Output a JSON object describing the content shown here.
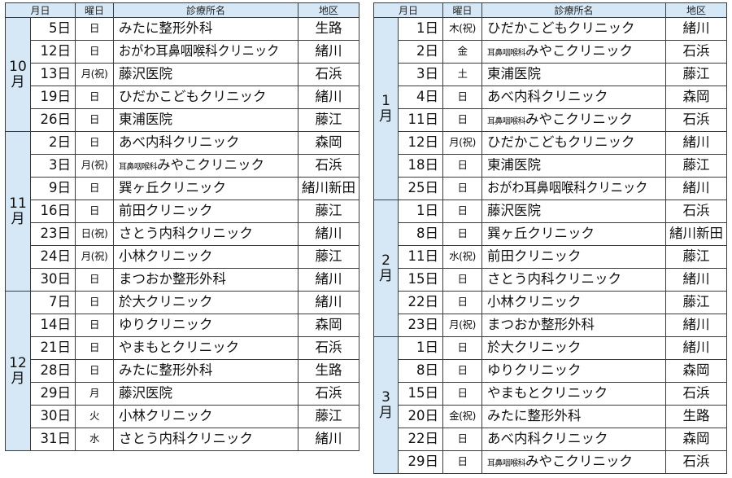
{
  "headers": {
    "month_day": "月日",
    "weekday": "曜日",
    "clinic": "診療所名",
    "area": "地区"
  },
  "left_groups": [
    {
      "month": "10月",
      "rows": [
        {
          "date": "5日",
          "dow": "日",
          "clinic": "みたに整形外科",
          "area": "生路"
        },
        {
          "date": "12日",
          "dow": "日",
          "clinic": "おがわ耳鼻咽喉科クリニック",
          "area": "緒川"
        },
        {
          "date": "13日",
          "dow": "月(祝)",
          "clinic": "藤沢医院",
          "area": "石浜"
        },
        {
          "date": "19日",
          "dow": "日",
          "clinic": "ひだかこどもクリニック",
          "area": "緒川"
        },
        {
          "date": "26日",
          "dow": "日",
          "clinic": "東浦医院",
          "area": "藤江"
        }
      ]
    },
    {
      "month": "11月",
      "rows": [
        {
          "date": "2日",
          "dow": "日",
          "clinic": "あべ内科クリニック",
          "area": "森岡"
        },
        {
          "date": "3日",
          "dow": "月(祝)",
          "clinic_prefix": "耳鼻咽喉科",
          "clinic": "みやこクリニック",
          "area": "石浜"
        },
        {
          "date": "9日",
          "dow": "日",
          "clinic": "巽ヶ丘クリニック",
          "area": "緒川新田"
        },
        {
          "date": "16日",
          "dow": "日",
          "clinic": "前田クリニック",
          "area": "藤江"
        },
        {
          "date": "23日",
          "dow": "日(祝)",
          "clinic": "さとう内科クリニック",
          "area": "緒川"
        },
        {
          "date": "24日",
          "dow": "月(祝)",
          "clinic": "小林クリニック",
          "area": "藤江"
        },
        {
          "date": "30日",
          "dow": "日",
          "clinic": "まつおか整形外科",
          "area": "緒川"
        }
      ]
    },
    {
      "month": "12月",
      "rows": [
        {
          "date": "7日",
          "dow": "日",
          "clinic": "於大クリニック",
          "area": "緒川"
        },
        {
          "date": "14日",
          "dow": "日",
          "clinic": "ゆりクリニック",
          "area": "森岡"
        },
        {
          "date": "21日",
          "dow": "日",
          "clinic": "やまもとクリニック",
          "area": "石浜"
        },
        {
          "date": "28日",
          "dow": "日",
          "clinic": "みたに整形外科",
          "area": "生路"
        },
        {
          "date": "29日",
          "dow": "月",
          "clinic": "藤沢医院",
          "area": "石浜"
        },
        {
          "date": "30日",
          "dow": "火",
          "clinic": "小林クリニック",
          "area": "藤江"
        },
        {
          "date": "31日",
          "dow": "水",
          "clinic": "さとう内科クリニック",
          "area": "緒川"
        }
      ]
    }
  ],
  "right_groups": [
    {
      "month": "1月",
      "rows": [
        {
          "date": "1日",
          "dow": "木(祝)",
          "clinic": "ひだかこどもクリニック",
          "area": "緒川"
        },
        {
          "date": "2日",
          "dow": "金",
          "clinic_prefix": "耳鼻咽喉科",
          "clinic": "みやこクリニック",
          "area": "石浜"
        },
        {
          "date": "3日",
          "dow": "土",
          "clinic": "東浦医院",
          "area": "藤江"
        },
        {
          "date": "4日",
          "dow": "日",
          "clinic": "あべ内科クリニック",
          "area": "森岡"
        },
        {
          "date": "11日",
          "dow": "日",
          "clinic_prefix": "耳鼻咽喉科",
          "clinic": "みやこクリニック",
          "area": "石浜"
        },
        {
          "date": "12日",
          "dow": "月(祝)",
          "clinic": "ひだかこどもクリニック",
          "area": "緒川"
        },
        {
          "date": "18日",
          "dow": "日",
          "clinic": "東浦医院",
          "area": "藤江"
        },
        {
          "date": "25日",
          "dow": "日",
          "clinic": "おがわ耳鼻咽喉科クリニック",
          "area": "緒川"
        }
      ]
    },
    {
      "month": "2月",
      "rows": [
        {
          "date": "1日",
          "dow": "日",
          "clinic": "藤沢医院",
          "area": "石浜"
        },
        {
          "date": "8日",
          "dow": "日",
          "clinic": "巽ヶ丘クリニック",
          "area": "緒川新田"
        },
        {
          "date": "11日",
          "dow": "水(祝)",
          "clinic": "前田クリニック",
          "area": "藤江"
        },
        {
          "date": "15日",
          "dow": "日",
          "clinic": "さとう内科クリニック",
          "area": "緒川"
        },
        {
          "date": "22日",
          "dow": "日",
          "clinic": "小林クリニック",
          "area": "藤江"
        },
        {
          "date": "23日",
          "dow": "月(祝)",
          "clinic": "まつおか整形外科",
          "area": "緒川"
        }
      ]
    },
    {
      "month": "3月",
      "rows": [
        {
          "date": "1日",
          "dow": "日",
          "clinic": "於大クリニック",
          "area": "緒川"
        },
        {
          "date": "8日",
          "dow": "日",
          "clinic": "ゆりクリニック",
          "area": "森岡"
        },
        {
          "date": "15日",
          "dow": "日",
          "clinic": "やまもとクリニック",
          "area": "石浜"
        },
        {
          "date": "20日",
          "dow": "金(祝)",
          "clinic": "みたに整形外科",
          "area": "生路"
        },
        {
          "date": "22日",
          "dow": "日",
          "clinic": "あべ内科クリニック",
          "area": "森岡"
        },
        {
          "date": "29日",
          "dow": "日",
          "clinic_prefix": "耳鼻咽喉科",
          "clinic": "みやこクリニック",
          "area": "石浜"
        }
      ]
    }
  ],
  "colors": {
    "header_bg": "#d6e8f6",
    "border": "#3b3b3b"
  }
}
